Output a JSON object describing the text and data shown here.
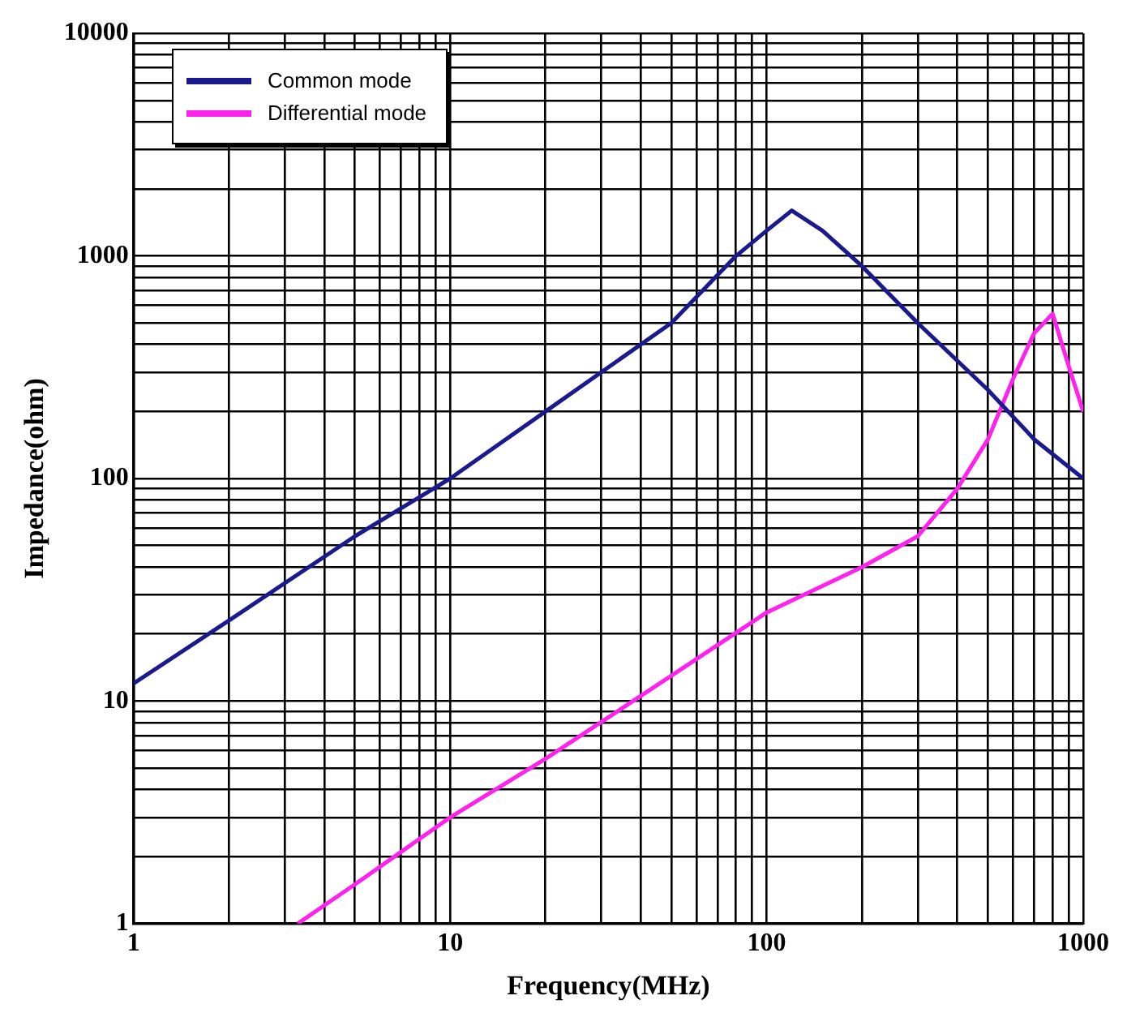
{
  "chart_data": {
    "type": "line",
    "xlabel": "Frequency(MHz)",
    "ylabel": "Impedance(ohm)",
    "log": "xy",
    "grid": true,
    "legend": "top left",
    "marker": "none",
    "line_style": "solid",
    "xlim": [
      1,
      1000
    ],
    "ylim": [
      1,
      10000
    ],
    "xticks": [
      1,
      {
        "value": 2,
        "label": null
      },
      {
        "value": 3,
        "label": null
      },
      {
        "value": 4,
        "label": null
      },
      {
        "value": 5,
        "label": null
      },
      {
        "value": 6,
        "label": null
      },
      {
        "value": 7,
        "label": null
      },
      {
        "value": 8,
        "label": null
      },
      {
        "value": 9,
        "label": null
      },
      10,
      {
        "value": 20,
        "label": null
      },
      {
        "value": 30,
        "label": null
      },
      {
        "value": 40,
        "label": null
      },
      {
        "value": 50,
        "label": null
      },
      {
        "value": 60,
        "label": null
      },
      {
        "value": 70,
        "label": null
      },
      {
        "value": 80,
        "label": null
      },
      {
        "value": 90,
        "label": null
      },
      100,
      {
        "value": 200,
        "label": null
      },
      {
        "value": 300,
        "label": null
      },
      {
        "value": 400,
        "label": null
      },
      {
        "value": 500,
        "label": null
      },
      {
        "value": 600,
        "label": null
      },
      {
        "value": 700,
        "label": null
      },
      {
        "value": 800,
        "label": null
      },
      {
        "value": 900,
        "label": null
      },
      1000
    ],
    "yticks": [
      1,
      {
        "value": 2,
        "label": null
      },
      {
        "value": 3,
        "label": null
      },
      {
        "value": 4,
        "label": null
      },
      {
        "value": 5,
        "label": null
      },
      {
        "value": 6,
        "label": null
      },
      {
        "value": 7,
        "label": null
      },
      {
        "value": 8,
        "label": null
      },
      {
        "value": 9,
        "label": null
      },
      10,
      {
        "value": 20,
        "label": null
      },
      {
        "value": 30,
        "label": null
      },
      {
        "value": 40,
        "label": null
      },
      {
        "value": 50,
        "label": null
      },
      {
        "value": 60,
        "label": null
      },
      {
        "value": 70,
        "label": null
      },
      {
        "value": 80,
        "label": null
      },
      {
        "value": 90,
        "label": null
      },
      100,
      {
        "value": 200,
        "label": null
      },
      {
        "value": 300,
        "label": null
      },
      {
        "value": 400,
        "label": null
      },
      {
        "value": 500,
        "label": null
      },
      {
        "value": 600,
        "label": null
      },
      {
        "value": 700,
        "label": null
      },
      {
        "value": 800,
        "label": null
      },
      {
        "value": 900,
        "label": null
      },
      1000,
      {
        "value": 2000,
        "label": null
      },
      {
        "value": 3000,
        "label": null
      },
      {
        "value": 4000,
        "label": null
      },
      {
        "value": 5000,
        "label": null
      },
      {
        "value": 6000,
        "label": null
      },
      {
        "value": 7000,
        "label": null
      },
      {
        "value": 8000,
        "label": null
      },
      {
        "value": 9000,
        "label": null
      },
      10000
    ],
    "series": [
      {
        "name": "Common mode",
        "color": "#1a1a8c",
        "x": [
          1,
          2,
          5,
          10,
          20,
          50,
          80,
          100,
          120,
          150,
          200,
          300,
          500,
          700,
          1000
        ],
        "values": [
          12,
          23,
          55,
          100,
          200,
          500,
          1000,
          1300,
          1600,
          1300,
          900,
          500,
          250,
          150,
          100
        ]
      },
      {
        "name": "Differential mode",
        "color": "#ff22ee",
        "x": [
          3.3,
          5,
          10,
          20,
          50,
          100,
          200,
          300,
          400,
          500,
          600,
          700,
          800,
          900,
          1000
        ],
        "values": [
          1,
          1.5,
          3,
          5.5,
          13,
          25,
          40,
          55,
          90,
          150,
          280,
          450,
          550,
          320,
          200
        ]
      }
    ]
  }
}
